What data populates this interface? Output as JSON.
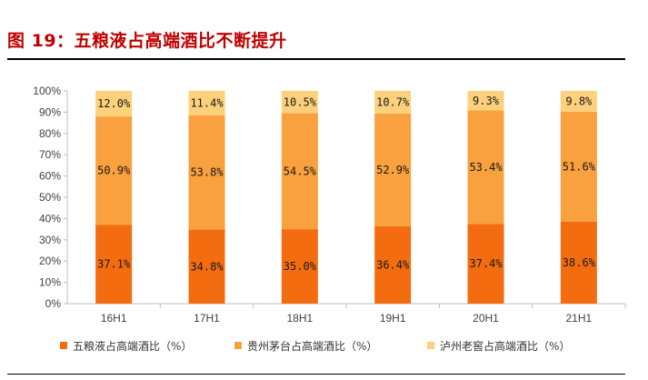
{
  "figure_title": "图 19：五粮液占高端酒比不断提升",
  "chart_data": {
    "type": "bar",
    "stacked": true,
    "categories": [
      "16H1",
      "17H1",
      "18H1",
      "19H1",
      "20H1",
      "21H1"
    ],
    "series": [
      {
        "name": "五粮液占高端酒比（%）",
        "values": [
          37.1,
          34.8,
          35.0,
          36.4,
          37.4,
          38.6
        ],
        "labels": [
          "37.1%",
          "34.8%",
          "35.0%",
          "36.4%",
          "37.4%",
          "38.6%"
        ],
        "color": "#f36c10"
      },
      {
        "name": "贵州茅台占高端酒比（%）",
        "values": [
          50.9,
          53.8,
          54.5,
          52.9,
          53.4,
          51.6
        ],
        "labels": [
          "50.9%",
          "53.8%",
          "54.5%",
          "52.9%",
          "53.4%",
          "51.6%"
        ],
        "color": "#f9a03f"
      },
      {
        "name": "泸州老窖占高端酒比（%）",
        "values": [
          12.0,
          11.4,
          10.5,
          10.7,
          9.3,
          9.8
        ],
        "labels": [
          "12.0%",
          "11.4%",
          "10.5%",
          "10.7%",
          "9.3%",
          "9.8%"
        ],
        "color": "#fdd17b"
      }
    ],
    "ylim": [
      0,
      100
    ],
    "yticks": [
      "0%",
      "10%",
      "20%",
      "30%",
      "40%",
      "50%",
      "60%",
      "70%",
      "80%",
      "90%",
      "100%"
    ],
    "legend_position": "bottom",
    "grid": false
  }
}
